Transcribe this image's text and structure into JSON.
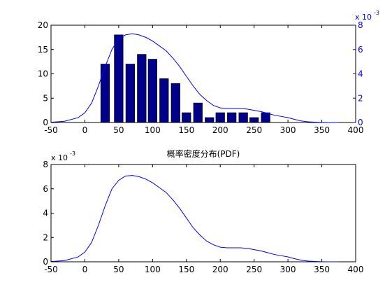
{
  "chart_data": [
    {
      "type": "bar",
      "title": "",
      "xlabel": "",
      "ylabel": "",
      "xlim": [
        -50,
        400
      ],
      "ylim": [
        0,
        20
      ],
      "x_ticks": [
        "-50",
        "0",
        "50",
        "100",
        "150",
        "200",
        "250",
        "300",
        "350",
        "400"
      ],
      "y_ticks": [
        "0",
        "5",
        "10",
        "15",
        "20"
      ],
      "bar_color": "#00008b",
      "bars": {
        "x": [
          30,
          50,
          67,
          84,
          100,
          117,
          134,
          150,
          167,
          184,
          200,
          217,
          234,
          250,
          267,
          284
        ],
        "values": [
          12,
          18,
          12,
          14,
          13,
          9,
          8,
          2,
          4,
          1,
          2,
          2,
          2,
          1,
          2,
          0
        ]
      },
      "right_axis": {
        "exponent_label": "x 10",
        "exponent": "-3",
        "ylim": [
          0,
          8
        ],
        "y_ticks": [
          "0",
          "2",
          "4",
          "6",
          "8"
        ],
        "color": "#0000ff"
      },
      "line": {
        "name": "",
        "color": "#0000ff",
        "x": [
          -50,
          -30,
          -10,
          0,
          10,
          20,
          30,
          40,
          50,
          60,
          70,
          80,
          90,
          100,
          110,
          120,
          130,
          140,
          150,
          160,
          170,
          180,
          190,
          200,
          210,
          220,
          230,
          240,
          250,
          260,
          270,
          280,
          290,
          300,
          310,
          320,
          330,
          340,
          350,
          360,
          375
        ],
        "y": [
          0.02,
          0.1,
          0.4,
          0.8,
          1.6,
          3.0,
          4.6,
          6.0,
          6.9,
          7.2,
          7.3,
          7.2,
          7.0,
          6.7,
          6.3,
          5.9,
          5.3,
          4.6,
          3.8,
          3.0,
          2.3,
          1.8,
          1.4,
          1.2,
          1.15,
          1.15,
          1.15,
          1.1,
          1.0,
          0.9,
          0.75,
          0.6,
          0.5,
          0.4,
          0.25,
          0.12,
          0.06,
          0.03,
          0.01,
          0.0,
          0.0
        ]
      }
    },
    {
      "type": "line",
      "title": "概率密度分布(PDF)",
      "xlabel": "",
      "ylabel": "",
      "xlim": [
        -50,
        400
      ],
      "ylim": [
        0,
        8
      ],
      "x_ticks": [
        "-50",
        "0",
        "50",
        "100",
        "150",
        "200",
        "250",
        "300",
        "350",
        "400"
      ],
      "y_ticks": [
        "0",
        "2",
        "4",
        "6",
        "8"
      ],
      "exponent_label": "x 10",
      "exponent": "-3",
      "line": {
        "name": "",
        "color": "#0000ff",
        "x": [
          -50,
          -30,
          -10,
          0,
          10,
          20,
          30,
          40,
          50,
          60,
          70,
          80,
          90,
          100,
          110,
          120,
          130,
          140,
          150,
          160,
          170,
          180,
          190,
          200,
          210,
          220,
          230,
          240,
          250,
          260,
          270,
          280,
          290,
          300,
          310,
          320,
          330,
          340,
          350,
          360,
          375
        ],
        "y": [
          0.02,
          0.1,
          0.4,
          0.8,
          1.6,
          3.0,
          4.6,
          6.0,
          6.7,
          7.05,
          7.1,
          7.0,
          6.8,
          6.5,
          6.1,
          5.7,
          5.1,
          4.4,
          3.6,
          2.8,
          2.2,
          1.7,
          1.4,
          1.2,
          1.15,
          1.15,
          1.15,
          1.1,
          1.0,
          0.9,
          0.75,
          0.6,
          0.5,
          0.4,
          0.25,
          0.12,
          0.06,
          0.03,
          0.01,
          0.0,
          0.0
        ]
      }
    }
  ]
}
